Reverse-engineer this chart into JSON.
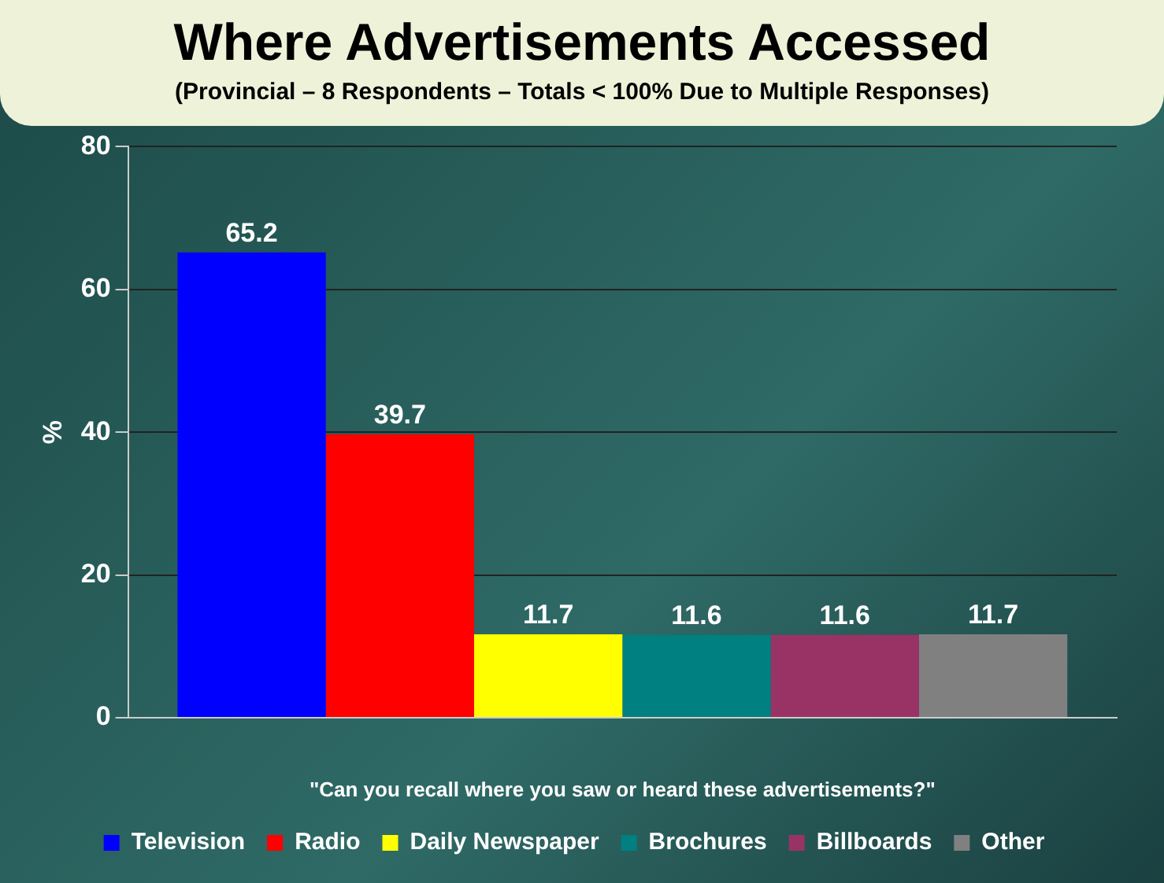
{
  "chart_data": {
    "type": "bar",
    "title": "Where Advertisements Accessed",
    "subtitle": "(Provincial –  8 Respondents – Totals < 100% Due to Multiple Responses)",
    "xlabel": "\"Can you recall where you saw or heard these advertisements?\"",
    "ylabel": "%",
    "categories": [
      null
    ],
    "series": [
      {
        "name": "Television",
        "color": "#0000ff",
        "values": [
          65.2
        ]
      },
      {
        "name": "Radio",
        "color": "#ff0000",
        "values": [
          39.7
        ]
      },
      {
        "name": "Daily Newspaper",
        "color": "#ffff00",
        "values": [
          11.7
        ]
      },
      {
        "name": "Brochures",
        "color": "#008080",
        "values": [
          11.6
        ]
      },
      {
        "name": "Billboards",
        "color": "#993366",
        "values": [
          11.6
        ]
      },
      {
        "name": "Other",
        "color": "#808080",
        "values": [
          11.7
        ]
      }
    ],
    "ylim": [
      0,
      80
    ],
    "yticks": [
      0,
      20,
      40,
      60,
      80
    ],
    "grid": "y",
    "legend": "bottom",
    "data_labels": true
  }
}
